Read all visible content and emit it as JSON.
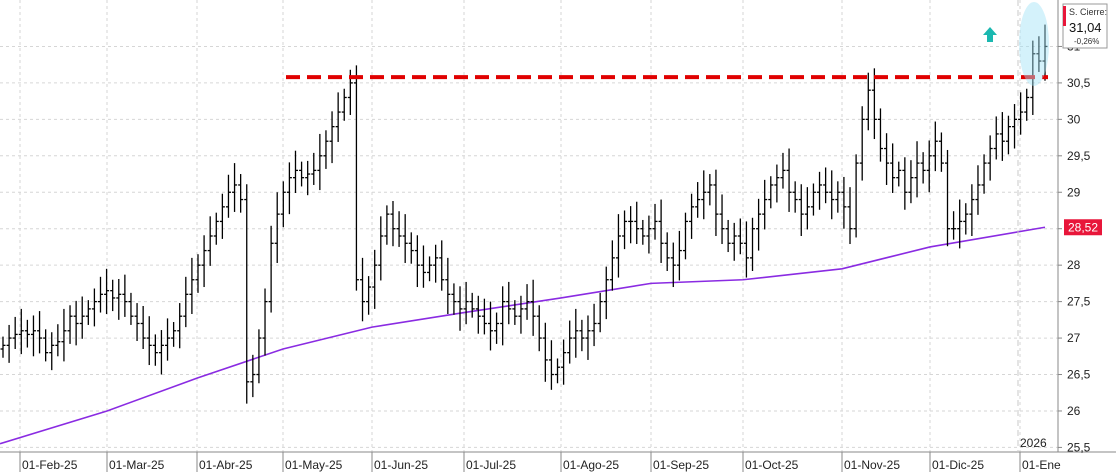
{
  "chart_data": {
    "type": "ohlc",
    "x_ticks": [
      "01-Feb-25",
      "01-Mar-25",
      "01-Abr-25",
      "01-May-25",
      "01-Jun-25",
      "01-Jul-25",
      "01-Ago-25",
      "01-Sep-25",
      "01-Oct-25",
      "01-Nov-25",
      "01-Dic-25",
      "01-Ene"
    ],
    "year_label": "2026",
    "y_ticks": [
      "25,5",
      "26",
      "26,5",
      "27",
      "27,5",
      "28",
      "28,5",
      "29",
      "29,5",
      "30",
      "30,5",
      "31"
    ],
    "ylim": [
      25.3,
      31.5
    ],
    "grid": true,
    "price_panel": {
      "title": "S. Cierre:",
      "value": "31,04",
      "change": "-0,26%"
    },
    "ma_label": "28,52",
    "ma_value": 28.52,
    "resistance_level": 30.58,
    "colors": {
      "bars": "#000000",
      "ma": "#8a2be2",
      "resistance": "#e00000",
      "arrow": "#1bb8b0",
      "ellipse": "#9fe3f7",
      "ma_label_bg": "#e8163a",
      "panel_accent": "#e8163a"
    },
    "icons": [
      "up-arrow-icon"
    ],
    "series": [
      {
        "close": [
          26.9,
          27.0,
          27.05,
          27.1,
          27.05,
          27.1,
          27.0,
          26.8,
          26.9,
          26.95,
          27.1,
          27.3,
          27.2,
          27.3,
          27.4,
          27.5,
          27.6,
          27.65,
          27.55,
          27.6,
          27.5,
          27.3,
          27.2,
          27.0,
          26.9,
          26.8,
          26.9,
          27.0,
          27.1,
          27.3,
          27.6,
          27.8,
          28.0,
          28.2,
          28.4,
          28.6,
          28.8,
          29.0,
          29.1,
          28.9,
          26.4,
          26.5,
          27.0,
          27.5,
          28.3,
          28.7,
          29.0,
          29.2,
          29.3,
          29.2,
          29.25,
          29.3,
          29.5,
          29.7,
          29.9,
          30.1,
          30.3,
          30.5,
          27.8,
          27.5,
          27.7,
          28.0,
          28.4,
          28.7,
          28.5,
          28.4,
          28.3,
          28.2,
          28.0,
          27.9,
          28.0,
          28.1,
          27.8,
          27.6,
          27.5,
          27.4,
          27.5,
          27.4,
          27.3,
          27.2,
          27.1,
          27.2,
          27.5,
          27.4,
          27.3,
          27.4,
          27.5,
          27.3,
          27.0,
          26.7,
          26.5,
          26.6,
          26.8,
          27.0,
          27.1,
          27.0,
          27.1,
          27.2,
          27.5,
          27.8,
          28.1,
          28.4,
          28.6,
          28.6,
          28.5,
          28.4,
          28.5,
          28.6,
          28.3,
          28.1,
          28.0,
          28.2,
          28.6,
          28.8,
          28.9,
          29.0,
          29.1,
          28.7,
          28.5,
          28.3,
          28.4,
          28.3,
          28.1,
          28.5,
          28.7,
          28.9,
          29.1,
          29.2,
          29.3,
          29.0,
          28.9,
          28.7,
          28.8,
          29.0,
          29.1,
          29.0,
          28.9,
          29.0,
          28.8,
          28.5,
          29.4,
          30.0,
          30.4,
          30.0,
          29.6,
          29.4,
          29.2,
          29.3,
          29.0,
          29.2,
          29.4,
          29.3,
          29.5,
          29.7,
          29.4,
          28.5,
          28.5,
          28.6,
          28.7,
          28.9,
          29.1,
          29.4,
          29.6,
          29.8,
          29.7,
          29.9,
          30.0,
          30.1,
          30.3,
          30.9,
          30.8,
          31.0
        ]
      },
      {
        "name": "",
        "type": "line",
        "values": [
          25.55,
          26.0,
          26.45,
          26.85,
          27.15,
          27.35,
          27.55,
          27.75,
          27.8,
          27.95,
          28.25,
          28.52
        ]
      }
    ]
  }
}
